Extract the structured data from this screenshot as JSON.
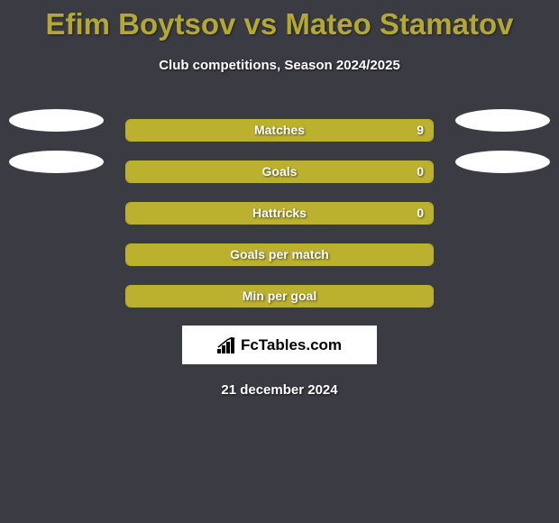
{
  "title": "Efim Boytsov vs Mateo Stamatov",
  "subtitle": "Club competitions, Season 2024/2025",
  "date": "21 december 2024",
  "logo_text": "FcTables.com",
  "colors": {
    "background": "#3b3b43",
    "accent": "#bcb02f",
    "title_color": "#b3a836",
    "text_color": "#ffffff",
    "ellipse_color": "#ffffff"
  },
  "stats": [
    {
      "label": "Matches",
      "value": "9",
      "fill_percent": 100,
      "show_left_ellipse": true,
      "show_right_ellipse": true,
      "show_value": true
    },
    {
      "label": "Goals",
      "value": "0",
      "fill_percent": 100,
      "show_left_ellipse": true,
      "show_right_ellipse": true,
      "show_value": true
    },
    {
      "label": "Hattricks",
      "value": "0",
      "fill_percent": 100,
      "show_left_ellipse": false,
      "show_right_ellipse": false,
      "show_value": true
    },
    {
      "label": "Goals per match",
      "value": "",
      "fill_percent": 100,
      "show_left_ellipse": false,
      "show_right_ellipse": false,
      "show_value": false
    },
    {
      "label": "Min per goal",
      "value": "",
      "fill_percent": 100,
      "show_left_ellipse": false,
      "show_right_ellipse": false,
      "show_value": false
    }
  ]
}
